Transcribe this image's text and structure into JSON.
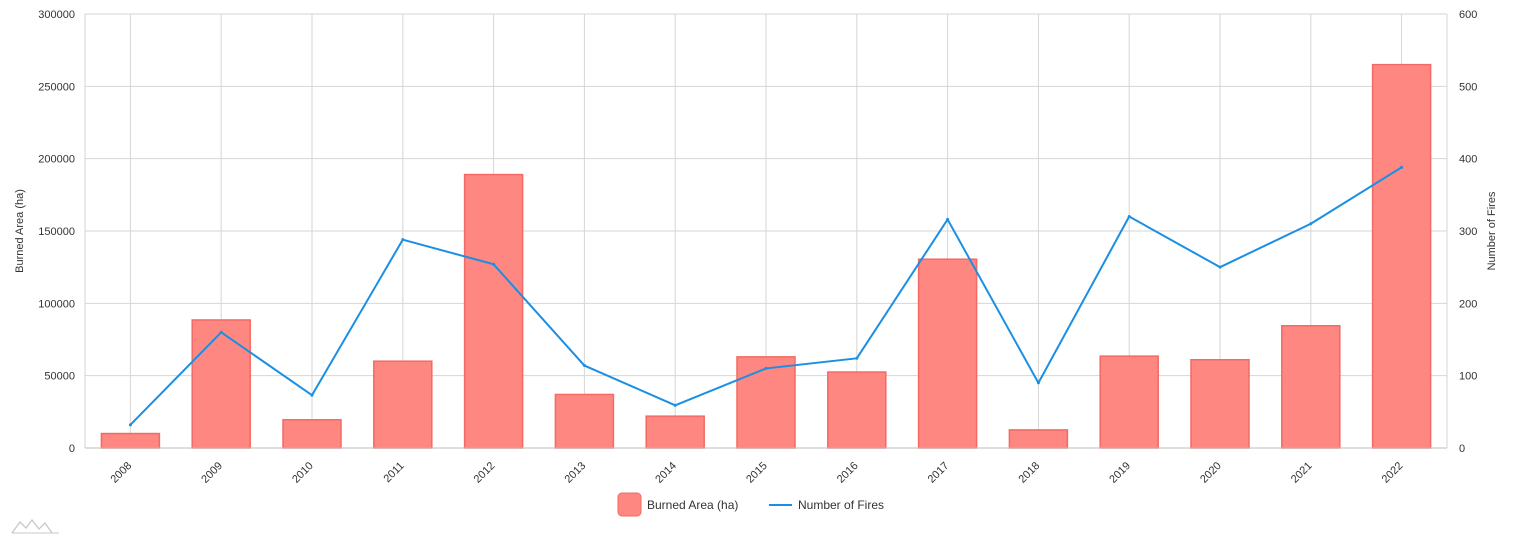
{
  "chart_data": {
    "type": "bar",
    "categories": [
      "2008",
      "2009",
      "2010",
      "2011",
      "2012",
      "2013",
      "2014",
      "2015",
      "2016",
      "2017",
      "2018",
      "2019",
      "2020",
      "2021",
      "2022"
    ],
    "series": [
      {
        "name": "Burned Area (ha)",
        "type": "bar",
        "axis": "left",
        "color": "#ff8782",
        "border_color": "#f26a63",
        "values": [
          10000,
          88500,
          19500,
          60000,
          189000,
          37000,
          22000,
          63000,
          52500,
          130500,
          12500,
          63500,
          61000,
          84500,
          265000
        ]
      },
      {
        "name": "Number of Fires",
        "type": "line",
        "axis": "right",
        "color": "#1a8fe3",
        "values": [
          32,
          160,
          73,
          288,
          254,
          114,
          59,
          110,
          124,
          316,
          90,
          320,
          250,
          310,
          388
        ]
      }
    ],
    "y_left": {
      "label": "Burned Area (ha)",
      "min": 0,
      "max": 300000,
      "ticks": [
        "0",
        "50000",
        "100000",
        "150000",
        "200000",
        "250000",
        "300000"
      ]
    },
    "y_right": {
      "label": "Number of Fires",
      "min": 0,
      "max": 600,
      "ticks": [
        "0",
        "100",
        "200",
        "300",
        "400",
        "500",
        "600"
      ]
    },
    "grid": true,
    "legend_position": "bottom-center"
  }
}
